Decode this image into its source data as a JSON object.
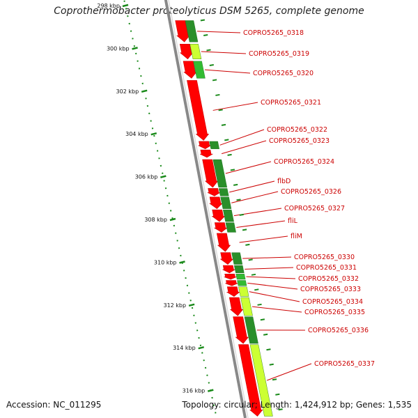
{
  "title": "Coprothermobacter proteolyticus DSM 5265, complete genome",
  "footer": {
    "accession": "Accession: NC_011295",
    "stats": "Topology: circular; Length: 1,424,912 bp; Genes: 1,535"
  },
  "colors": {
    "gene": "#ff0000",
    "gene_border": "#cc0000",
    "backbone": "#999999",
    "tick": "#1a8a1a",
    "label": "#cc0000",
    "green_dark": "#2a8f2a",
    "green_mid": "#33bb33",
    "green_light": "#ccff33"
  },
  "scale": {
    "unit": "kbp",
    "ticks": [
      {
        "kbp": 298,
        "label": "298 kbp"
      },
      {
        "kbp": 300,
        "label": "300 kbp"
      },
      {
        "kbp": 302,
        "label": "302 kbp"
      },
      {
        "kbp": 304,
        "label": "304 kbp"
      },
      {
        "kbp": 306,
        "label": "306 kbp"
      },
      {
        "kbp": 308,
        "label": "308 kbp"
      },
      {
        "kbp": 310,
        "label": "310 kbp"
      },
      {
        "kbp": 312,
        "label": "312 kbp"
      },
      {
        "kbp": 314,
        "label": "314 kbp"
      },
      {
        "kbp": 316,
        "label": "316 kbp"
      }
    ]
  },
  "genes": [
    {
      "name": "COPRO5265_0318",
      "start": 298.7,
      "end": 299.7,
      "shade": "dark"
    },
    {
      "name": "COPRO5265_0319",
      "start": 299.8,
      "end": 300.5,
      "shade": "light"
    },
    {
      "name": "COPRO5265_0320",
      "start": 300.6,
      "end": 301.4,
      "shade": "mid"
    },
    {
      "name": "COPRO5265_0321",
      "start": 301.5,
      "end": 304.3,
      "shade": "none"
    },
    {
      "name": "COPRO5265_0322",
      "start": 304.35,
      "end": 304.7,
      "shade": "dark"
    },
    {
      "name": "COPRO5265_0323",
      "start": 304.75,
      "end": 305.1,
      "shade": "none"
    },
    {
      "name": "COPRO5265_0324",
      "start": 305.2,
      "end": 306.5,
      "shade": "dark"
    },
    {
      "name": "flbD",
      "start": 306.55,
      "end": 306.9,
      "shade": "dark"
    },
    {
      "name": "COPRO5265_0326",
      "start": 306.95,
      "end": 307.5,
      "shade": "dark"
    },
    {
      "name": "COPRO5265_0327",
      "start": 307.55,
      "end": 308.1,
      "shade": "dark"
    },
    {
      "name": "fliL",
      "start": 308.15,
      "end": 308.6,
      "shade": "dark"
    },
    {
      "name": "fliM",
      "start": 308.65,
      "end": 309.5,
      "shade": "none"
    },
    {
      "name": "COPRO5265_0330",
      "start": 309.55,
      "end": 310.1,
      "shade": "dark"
    },
    {
      "name": "COPRO5265_0331",
      "start": 310.15,
      "end": 310.5,
      "shade": "dark"
    },
    {
      "name": "COPRO5265_0332",
      "start": 310.55,
      "end": 310.8,
      "shade": "mid"
    },
    {
      "name": "COPRO5265_0333",
      "start": 310.85,
      "end": 311.1,
      "shade": "mid"
    },
    {
      "name": "COPRO5265_0334",
      "start": 311.15,
      "end": 311.6,
      "shade": "light"
    },
    {
      "name": "COPRO5265_0335",
      "start": 311.65,
      "end": 312.5,
      "shade": "light"
    },
    {
      "name": "COPRO5265_0336",
      "start": 312.55,
      "end": 313.8,
      "shade": "dark"
    },
    {
      "name": "COPRO5265_0337",
      "start": 313.85,
      "end": 317.2,
      "shade": "light"
    }
  ]
}
